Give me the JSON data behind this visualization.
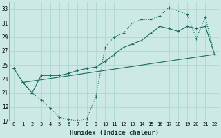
{
  "xlabel": "Humidex (Indice chaleur)",
  "bg_color": "#cce9e5",
  "grid_color": "#aad4cf",
  "line_color": "#1a6b60",
  "ylim": [
    17,
    34
  ],
  "xlim": [
    -0.5,
    22.5
  ],
  "yticks": [
    17,
    19,
    21,
    23,
    25,
    27,
    29,
    31,
    33
  ],
  "xticks": [
    0,
    1,
    2,
    3,
    4,
    5,
    6,
    7,
    8,
    9,
    10,
    11,
    12,
    13,
    14,
    15,
    16,
    17,
    18,
    19,
    20,
    21,
    22
  ],
  "line1_x": [
    0,
    1,
    2,
    3,
    4,
    5,
    6,
    7,
    8,
    9,
    10,
    11,
    12,
    13,
    14,
    15,
    16,
    17,
    19,
    20,
    21,
    22
  ],
  "line1_y": [
    24.5,
    22.5,
    21.0,
    20.0,
    18.8,
    17.5,
    17.2,
    17.0,
    17.3,
    20.5,
    27.5,
    29.0,
    29.5,
    31.0,
    31.5,
    31.5,
    32.0,
    33.2,
    32.2,
    28.8,
    31.8,
    26.5
  ],
  "line2_x": [
    1,
    22
  ],
  "line2_y": [
    22.5,
    26.5
  ],
  "line3_x": [
    0,
    1,
    2,
    3,
    4,
    5,
    6,
    7,
    8,
    9,
    10,
    11,
    12,
    13,
    14,
    15,
    16,
    17,
    18,
    19,
    20,
    21,
    22
  ],
  "line3_y": [
    24.5,
    22.5,
    21.0,
    23.5,
    23.5,
    23.5,
    23.8,
    24.2,
    24.5,
    24.7,
    25.5,
    26.5,
    27.5,
    28.0,
    28.5,
    29.5,
    30.5,
    30.2,
    29.8,
    30.5,
    30.2,
    30.5,
    26.5
  ]
}
